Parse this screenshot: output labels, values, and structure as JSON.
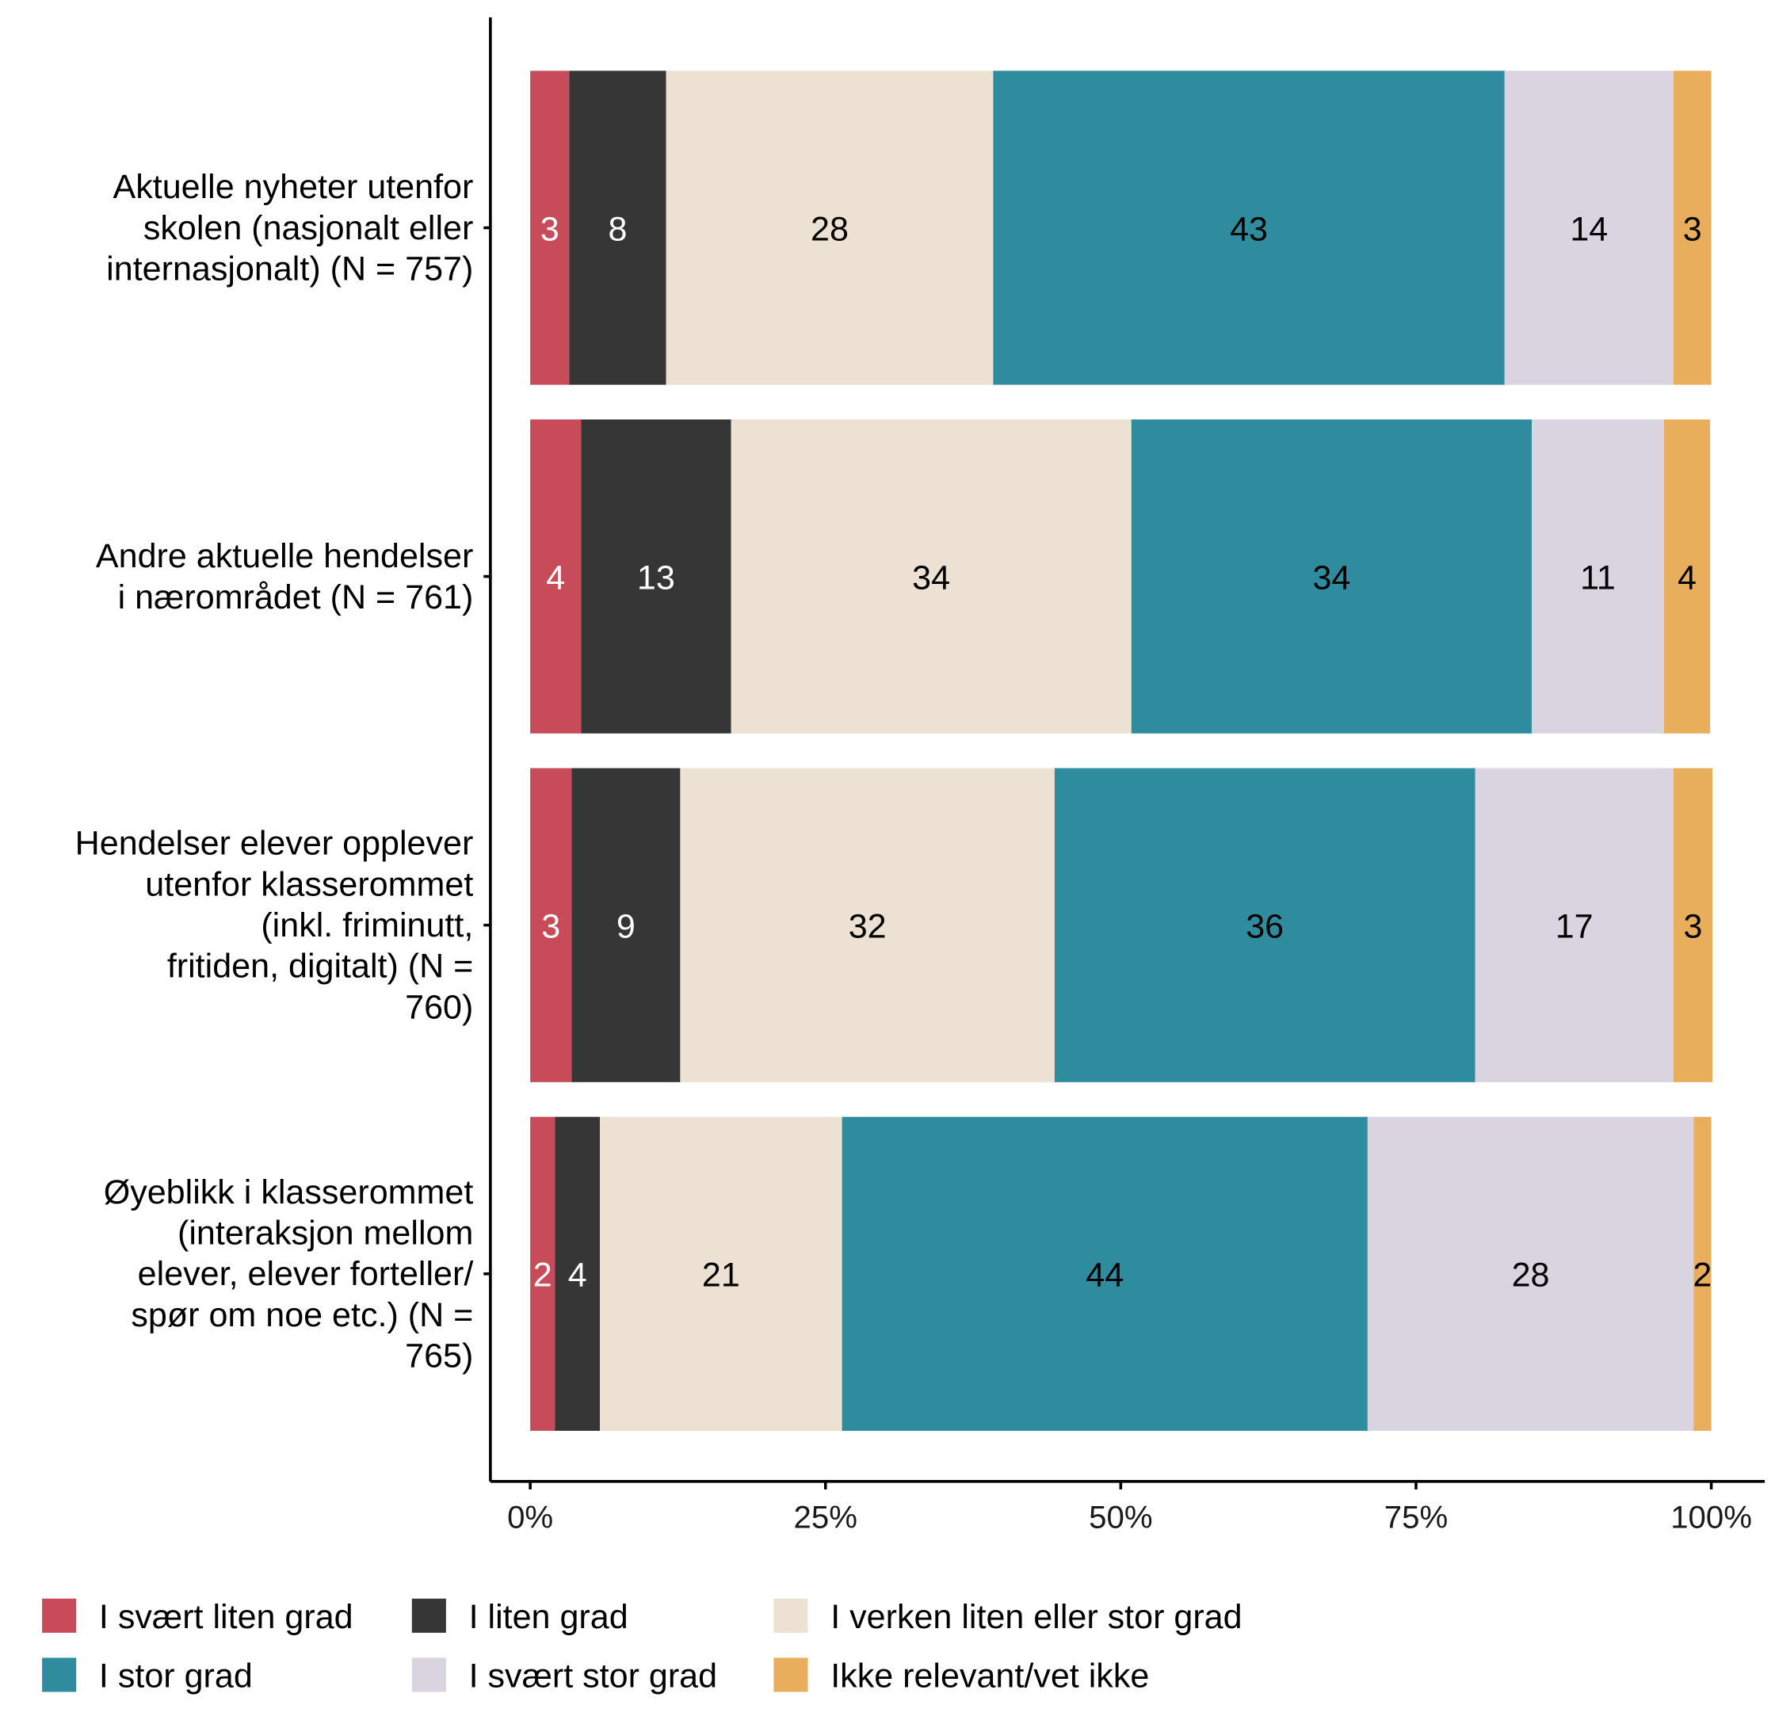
{
  "chart_data": {
    "type": "bar",
    "orientation": "horizontal",
    "stacked": true,
    "title": "",
    "xlabel": "",
    "ylabel": "",
    "xlim": [
      0,
      100
    ],
    "x_ticks": [
      "0%",
      "25%",
      "50%",
      "75%",
      "100%"
    ],
    "grid": false,
    "legend_position": "bottom",
    "categories": [
      "Aktuelle nyheter utenfor skolen (nasjonalt eller internasjonalt) (N = 757)",
      "Andre aktuelle hendelser i nærområdet (N = 761)",
      "Hendelser elever opplever utenfor klasserommet (inkl. friminutt, fritiden, digitalt) (N = 760)",
      "Øyeblikk i klasserommet (interaksjon mellom elever, elever forteller/ spør om noe etc.) (N = 765)"
    ],
    "category_lines": [
      [
        "Aktuelle nyheter utenfor",
        "skolen (nasjonalt eller",
        "internasjonalt) (N = 757)"
      ],
      [
        "Andre aktuelle hendelser",
        "i nærområdet (N = 761)"
      ],
      [
        "Hendelser elever opplever",
        "utenfor klasserommet",
        "(inkl. friminutt,",
        "fritiden, digitalt) (N =",
        "760)"
      ],
      [
        "Øyeblikk i klasserommet",
        "(interaksjon mellom",
        "elever, elever forteller/",
        "spør om noe etc.) (N =",
        "765)"
      ]
    ],
    "series": [
      {
        "name": "I svært liten grad",
        "color": "#C84B5A",
        "label_color": "#ffffff",
        "values": [
          3.3,
          4.3,
          3.5,
          2.1
        ],
        "labels": [
          "3",
          "4",
          "3",
          "2"
        ]
      },
      {
        "name": "I liten grad",
        "color": "#363636",
        "label_color": "#ffffff",
        "values": [
          8.2,
          12.7,
          9.2,
          3.8
        ],
        "labels": [
          "8",
          "13",
          "9",
          "4"
        ]
      },
      {
        "name": "I verken liten eller stor grad",
        "color": "#ECE1D3",
        "label_color": "#000000",
        "values": [
          27.7,
          33.9,
          31.7,
          20.5
        ],
        "labels": [
          "28",
          "34",
          "32",
          "21"
        ]
      },
      {
        "name": "I stor grad",
        "color": "#2E8C9E",
        "label_color": "#000000",
        "values": [
          43.3,
          33.9,
          35.6,
          44.5
        ],
        "labels": [
          "43",
          "34",
          "36",
          "44"
        ]
      },
      {
        "name": "I svært stor grad",
        "color": "#DAD3E0",
        "label_color": "#000000",
        "values": [
          14.3,
          11.2,
          16.8,
          27.6
        ],
        "labels": [
          "14",
          "11",
          "17",
          "28"
        ]
      },
      {
        "name": "Ikke relevant/vet ikke",
        "color": "#E8AE5C",
        "label_color": "#000000",
        "values": [
          3.2,
          3.9,
          3.3,
          1.5
        ],
        "labels": [
          "3",
          "4",
          "3",
          "2"
        ]
      }
    ]
  }
}
